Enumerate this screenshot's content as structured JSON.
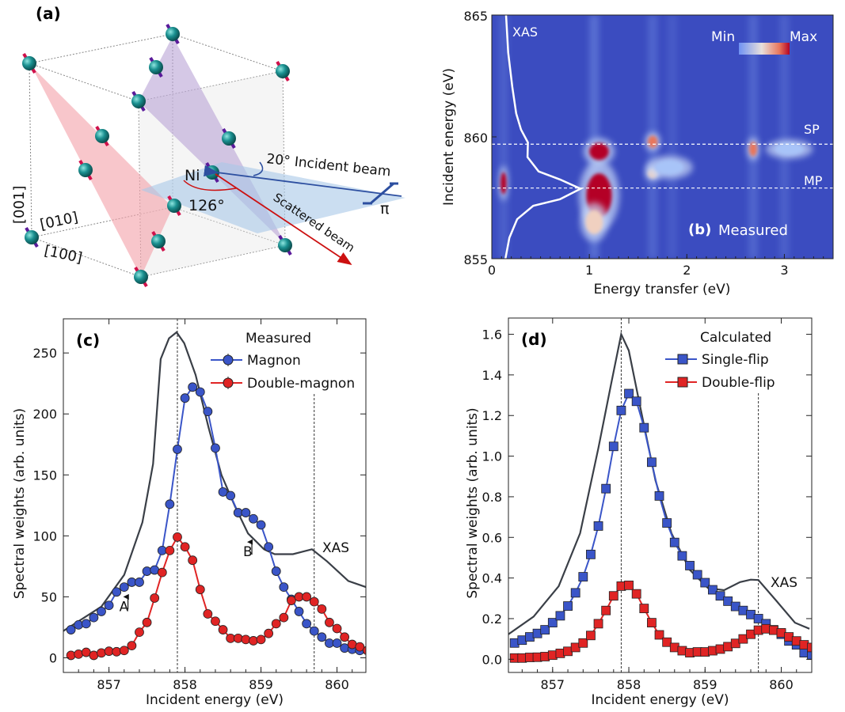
{
  "panel_a": {
    "label": "(a)",
    "ni_label": "Ni",
    "incident_label": "20° Incident beam",
    "angle_label": "126°",
    "scattered_label": "Scattered beam",
    "polarization_label": "π",
    "axis_001": "[001]",
    "axis_010": "[010]",
    "axis_100": "[100]",
    "colors": {
      "atom": "#1a8f8f",
      "red_plane": "#f4a0a8",
      "purple_plane": "#b9a3d6",
      "blue_plane": "#a9c8e8",
      "incident": "#2d4fa0",
      "scattered": "#cc1010"
    }
  },
  "chart_data": [
    {
      "type": "heatmap",
      "panel_label": "(b)",
      "title": "Measured",
      "xlabel": "Energy transfer (eV)",
      "ylabel": "Incident energy (eV)",
      "xlim": [
        0,
        3.5
      ],
      "ylim": [
        855,
        865
      ],
      "xticks": [
        "0",
        "1",
        "2",
        "3"
      ],
      "yticks": [
        "855",
        "860",
        "865"
      ],
      "colorbar": {
        "min_label": "Min",
        "max_label": "Max",
        "colors": [
          "#3b4cc0",
          "#f0e0d8",
          "#b40426"
        ]
      },
      "background_color": "#3b4cc0",
      "hlines": [
        {
          "label": "SP",
          "y": 859.7
        },
        {
          "label": "MP",
          "y": 857.9
        }
      ],
      "xas_label": "XAS",
      "xas_curve": [
        [
          0.146,
          865
        ],
        [
          0.168,
          863.46
        ],
        [
          0.21,
          862.05
        ],
        [
          0.25,
          860.96
        ],
        [
          0.3,
          860.3
        ],
        [
          0.37,
          859.77
        ],
        [
          0.366,
          859.17
        ],
        [
          0.48,
          858.58
        ],
        [
          0.7,
          858.25
        ],
        [
          0.91,
          857.87
        ],
        [
          0.7,
          857.44
        ],
        [
          0.425,
          857.17
        ],
        [
          0.26,
          856.62
        ],
        [
          0.18,
          855.86
        ],
        [
          0.14,
          855
        ]
      ],
      "streaks": [
        [
          0.12,
          0.2
        ],
        [
          1.05,
          0.35
        ],
        [
          1.65,
          0.25
        ],
        [
          1.85,
          0.15
        ],
        [
          2.68,
          0.25
        ],
        [
          3.0,
          0.2
        ]
      ],
      "features": [
        {
          "x": 0.12,
          "y": 858.1,
          "intensity": 1.0,
          "sx": 0.03,
          "sy": 0.45
        },
        {
          "x": 1.1,
          "y": 857.6,
          "intensity": 1.0,
          "sx": 0.13,
          "sy": 0.9
        },
        {
          "x": 1.1,
          "y": 859.4,
          "intensity": 0.85,
          "sx": 0.1,
          "sy": 0.35
        },
        {
          "x": 1.05,
          "y": 856.5,
          "intensity": 0.55,
          "sx": 0.09,
          "sy": 0.5
        },
        {
          "x": 1.65,
          "y": 859.8,
          "intensity": 0.75,
          "sx": 0.05,
          "sy": 0.25
        },
        {
          "x": 1.65,
          "y": 858.5,
          "intensity": 0.6,
          "sx": 0.05,
          "sy": 0.2
        },
        {
          "x": 1.82,
          "y": 858.75,
          "intensity": 0.35,
          "sx": 0.15,
          "sy": 0.3
        },
        {
          "x": 2.68,
          "y": 859.5,
          "intensity": 0.8,
          "sx": 0.04,
          "sy": 0.3
        },
        {
          "x": 3.05,
          "y": 859.5,
          "intensity": 0.4,
          "sx": 0.15,
          "sy": 0.25
        }
      ]
    },
    {
      "type": "line",
      "panel_label": "(c)",
      "legend_title": "Measured",
      "xlabel": "Incident energy (eV)",
      "ylabel": "Spectral weights (arb. units)",
      "xlim": [
        856.4,
        860.38
      ],
      "ylim": [
        -12,
        278
      ],
      "xticks": [
        857,
        858,
        859,
        860
      ],
      "yticks": [
        0,
        50,
        100,
        150,
        200,
        250
      ],
      "vlines": [
        857.9,
        859.7
      ],
      "legend_position": "top-right",
      "marker": "circle",
      "series": [
        {
          "name": "Magnon",
          "color": "#3a55c8",
          "x_start": 856.5,
          "x_step": 0.1,
          "values": [
            23,
            27,
            28,
            33,
            38,
            43,
            54,
            58,
            62,
            62,
            71,
            72,
            88,
            126,
            171,
            213,
            222,
            218,
            202,
            172,
            136,
            133,
            119,
            119,
            114,
            109,
            91,
            71,
            58,
            48,
            38,
            28,
            22,
            17,
            12,
            12,
            8,
            7,
            6,
            6
          ]
        },
        {
          "name": "Double-magnon",
          "color": "#e02424",
          "x_start": 856.5,
          "x_step": 0.1,
          "values": [
            2,
            3,
            4.5,
            2,
            4,
            5.4,
            5,
            6,
            10,
            21,
            29,
            49,
            70,
            88,
            99,
            91,
            80,
            56,
            36,
            30,
            23,
            16,
            16,
            15,
            14,
            15,
            20,
            28,
            33,
            47,
            50,
            50,
            46,
            40,
            29,
            24,
            17,
            11,
            9,
            6
          ]
        }
      ],
      "xas": {
        "label": "XAS",
        "color": "#3a3f47",
        "points": [
          [
            856.4,
            22
          ],
          [
            856.9,
            42
          ],
          [
            857.2,
            68
          ],
          [
            857.44,
            111
          ],
          [
            857.58,
            159
          ],
          [
            857.68,
            245
          ],
          [
            857.79,
            262
          ],
          [
            857.89,
            267
          ],
          [
            857.99,
            258
          ],
          [
            858.14,
            232
          ],
          [
            858.31,
            189
          ],
          [
            858.48,
            150
          ],
          [
            858.66,
            124
          ],
          [
            858.83,
            102
          ],
          [
            859.04,
            89
          ],
          [
            859.18,
            85
          ],
          [
            859.42,
            85
          ],
          [
            859.67,
            89
          ],
          [
            859.87,
            79
          ],
          [
            860.15,
            63
          ],
          [
            860.38,
            58
          ]
        ]
      },
      "annotations": [
        {
          "text": "A",
          "x": 857.25,
          "y": 50
        },
        {
          "text": "B",
          "x": 858.88,
          "y": 95
        }
      ]
    },
    {
      "type": "line",
      "panel_label": "(d)",
      "legend_title": "Calculated",
      "xlabel": "Incident energy (eV)",
      "ylabel": "Spectral weights (arb. units)",
      "xlim": [
        856.42,
        860.4
      ],
      "ylim": [
        -0.065,
        1.68
      ],
      "xticks": [
        857,
        858,
        859,
        860
      ],
      "yticks": [
        "0.0",
        "0.2",
        "0.4",
        "0.6",
        "0.8",
        "1.0",
        "1.2",
        "1.4",
        "1.6"
      ],
      "vlines": [
        857.9,
        859.7
      ],
      "legend_position": "top-right",
      "marker": "square",
      "series": [
        {
          "name": "Single-flip",
          "color": "#3a55c8",
          "x_start": 856.5,
          "x_step": 0.1,
          "values": [
            0.08,
            0.094,
            0.11,
            0.127,
            0.145,
            0.18,
            0.214,
            0.262,
            0.327,
            0.406,
            0.516,
            0.656,
            0.84,
            1.048,
            1.225,
            1.308,
            1.27,
            1.14,
            0.97,
            0.804,
            0.671,
            0.575,
            0.509,
            0.461,
            0.416,
            0.377,
            0.342,
            0.312,
            0.286,
            0.26,
            0.24,
            0.22,
            0.2,
            0.175,
            0.145,
            0.123,
            0.09,
            0.071,
            0.032,
            0.02
          ]
        },
        {
          "name": "Double-flip",
          "color": "#e02424",
          "x_start": 856.5,
          "x_step": 0.1,
          "values": [
            0.006,
            0.006,
            0.009,
            0.01,
            0.013,
            0.02,
            0.029,
            0.039,
            0.058,
            0.08,
            0.117,
            0.175,
            0.24,
            0.312,
            0.36,
            0.364,
            0.322,
            0.25,
            0.18,
            0.12,
            0.084,
            0.058,
            0.042,
            0.032,
            0.036,
            0.036,
            0.042,
            0.05,
            0.062,
            0.078,
            0.1,
            0.123,
            0.143,
            0.15,
            0.143,
            0.13,
            0.11,
            0.09,
            0.071,
            0.058
          ]
        }
      ],
      "xas": {
        "label": "XAS",
        "color": "#3a3f47",
        "points": [
          [
            856.42,
            0.123
          ],
          [
            856.75,
            0.21
          ],
          [
            857.08,
            0.36
          ],
          [
            857.36,
            0.62
          ],
          [
            857.6,
            1.04
          ],
          [
            857.77,
            1.36
          ],
          [
            857.9,
            1.6
          ],
          [
            858.0,
            1.52
          ],
          [
            858.14,
            1.26
          ],
          [
            858.35,
            0.88
          ],
          [
            858.56,
            0.62
          ],
          [
            858.8,
            0.44
          ],
          [
            859.04,
            0.35
          ],
          [
            859.25,
            0.34
          ],
          [
            859.46,
            0.38
          ],
          [
            859.6,
            0.392
          ],
          [
            859.7,
            0.39
          ],
          [
            859.94,
            0.286
          ],
          [
            860.18,
            0.18
          ],
          [
            860.37,
            0.15
          ]
        ]
      },
      "annotations": []
    }
  ]
}
